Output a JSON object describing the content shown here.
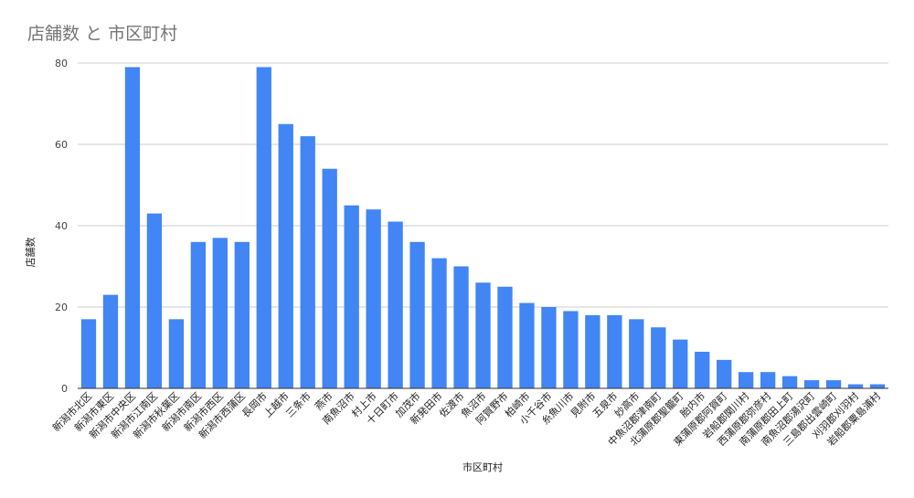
{
  "chart_data": {
    "type": "bar",
    "title": "店舗数 と 市区町村",
    "xlabel": "市区町村",
    "ylabel": "店舗数",
    "ylim": [
      0,
      80
    ],
    "yticks": [
      0,
      20,
      40,
      60,
      80
    ],
    "grid": true,
    "bar_color": "#4285f4",
    "categories": [
      "新潟市北区",
      "新潟市東区",
      "新潟市中央区",
      "新潟市江南区",
      "新潟市秋葉区",
      "新潟市南区",
      "新潟市西区",
      "新潟市西蒲区",
      "長岡市",
      "上越市",
      "三条市",
      "燕市",
      "南魚沼市",
      "村上市",
      "十日町市",
      "加茂市",
      "新発田市",
      "佐渡市",
      "魚沼市",
      "阿賀野市",
      "柏崎市",
      "小千谷市",
      "糸魚川市",
      "見附市",
      "五泉市",
      "妙高市",
      "中魚沼郡津南町",
      "北蒲原郡聖籠町",
      "胎内市",
      "東蒲原郡阿賀町",
      "岩船郡関川村",
      "西蒲原郡弥彦村",
      "南蒲原郡田上町",
      "南魚沼郡湯沢町",
      "三島郡出雲崎町",
      "刈羽郡刈羽村",
      "岩船郡粟島浦村"
    ],
    "values": [
      17,
      23,
      79,
      43,
      17,
      36,
      37,
      36,
      79,
      65,
      62,
      54,
      45,
      44,
      41,
      36,
      32,
      30,
      26,
      25,
      21,
      20,
      19,
      18,
      18,
      17,
      15,
      12,
      9,
      7,
      4,
      4,
      3,
      2,
      2,
      1,
      1
    ]
  }
}
